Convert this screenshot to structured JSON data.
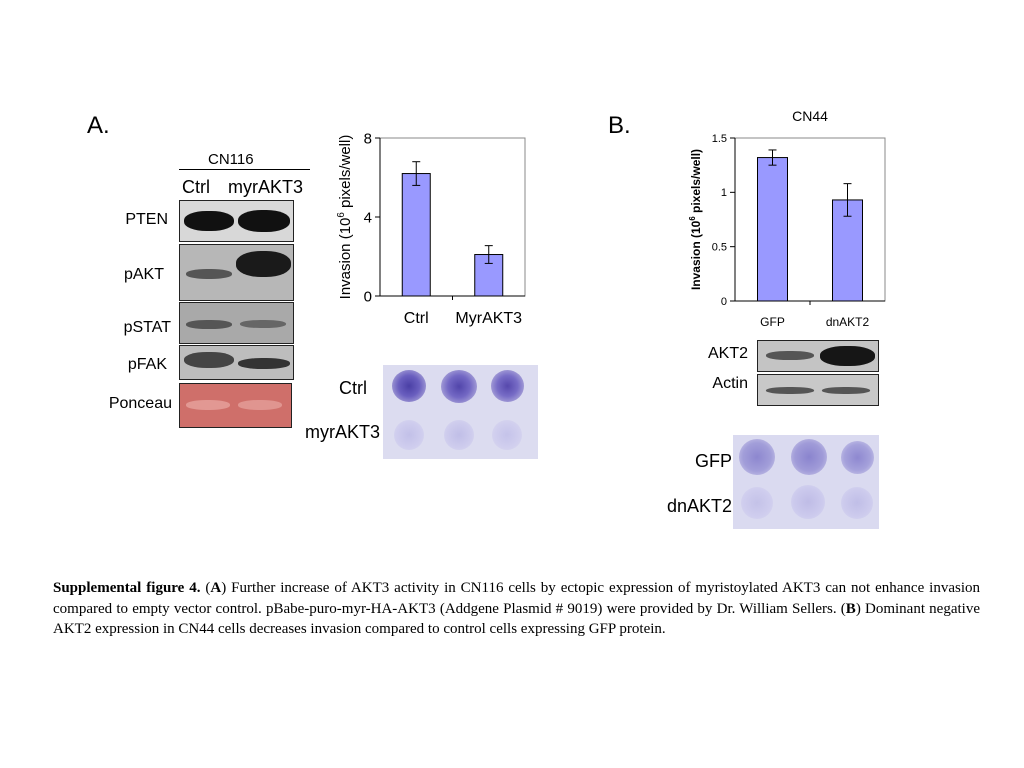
{
  "panel_a": {
    "label": "A.",
    "blot": {
      "cell_line": "CN116",
      "lanes": [
        "Ctrl",
        "myrAKT3"
      ],
      "rows": [
        "PTEN",
        "pAKT",
        "pSTAT",
        "pFAK",
        "Ponceau"
      ]
    },
    "invasion": {
      "row_labels": [
        "Ctrl",
        "myrAKT3"
      ]
    }
  },
  "panel_b": {
    "label": "B.",
    "blot": {
      "rows": [
        "AKT2",
        "Actin"
      ]
    },
    "invasion": {
      "row_labels": [
        "GFP",
        "dnAKT2"
      ]
    }
  },
  "chart_data": [
    {
      "type": "bar",
      "title": "",
      "categories": [
        "Ctrl",
        "MyrAKT3"
      ],
      "values": [
        6.2,
        2.1
      ],
      "error": [
        0.6,
        0.45
      ],
      "ylabel_prefix": "Invasion (10",
      "ylabel_sup": "6",
      "ylabel_suffix": " pixels/well)",
      "ylim": [
        0,
        8
      ],
      "yticks": [
        "0",
        "4",
        "8"
      ],
      "bar_color": "#9999ff",
      "grid": false
    },
    {
      "type": "bar",
      "title": "CN44",
      "categories": [
        "GFP",
        "dnAKT2"
      ],
      "values": [
        1.32,
        0.93
      ],
      "error": [
        0.07,
        0.15
      ],
      "ylabel_prefix": "Invasion (10",
      "ylabel_sup": "6",
      "ylabel_suffix": " pixels/well)",
      "ylim": [
        0,
        1.5
      ],
      "yticks": [
        "0",
        "0.5",
        "1",
        "1.5"
      ],
      "bar_color": "#9999ff",
      "grid": false
    }
  ],
  "caption": {
    "heading": "Supplemental figure 4.",
    "a_open": " (",
    "a_letter": "A",
    "a_text": ") Further increase of AKT3 activity in CN116 cells by ectopic expression of myristoylated AKT3 can not enhance invasion compared to empty vector control. pBabe-puro-myr-HA-AKT3 (Addgene Plasmid # 9019) were provided by Dr. William Sellers. (",
    "b_letter": "B",
    "b_text": ") Dominant negative AKT2 expression in CN44 cells decreases invasion compared to control cells expressing GFP protein."
  }
}
